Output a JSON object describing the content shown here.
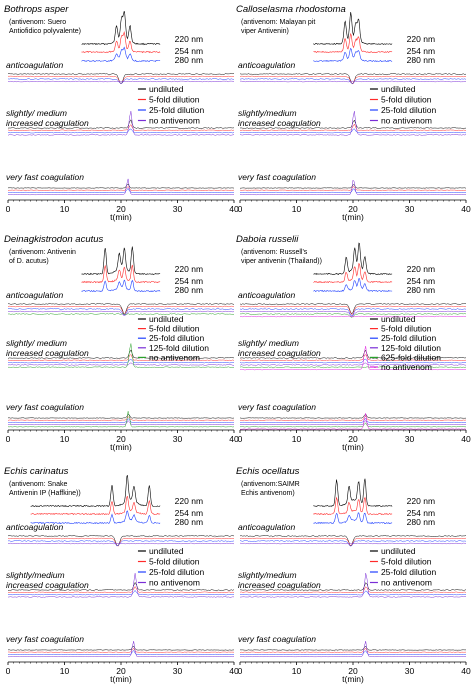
{
  "chart_data": [
    {
      "type": "line",
      "species": "Bothrops asper",
      "antivenom_note": [
        "(antivenom: Suero",
        "Antiofidico polyvalente)"
      ],
      "uv_labels": [
        "220 nm",
        "254 nm",
        "280 nm"
      ],
      "sections": [
        "anticoagulation",
        "slightly/ medium increased coagulation",
        "very fast coagulation"
      ],
      "legend": [
        "undiluted",
        "5-fold dilution",
        "25-fold dilution",
        "no antivenom"
      ],
      "xlabel": "t(min)",
      "xlim": [
        0,
        40
      ],
      "xticks": [
        0,
        10,
        20,
        30,
        40
      ],
      "peak_times": [
        19.2,
        20.1,
        20.6,
        21.6
      ],
      "anticoag_dip": 20.0,
      "coag_peak": 21.7,
      "fast_peak": 21.2
    },
    {
      "type": "line",
      "species": "Calloselasma rhodostoma",
      "antivenom_note": [
        "(antivenom: Malayan pit",
        "viper Antivenin)"
      ],
      "uv_labels": [
        "220 nm",
        "254 nm",
        "280 nm"
      ],
      "sections": [
        "anticoagulation",
        "slightly/medium increased coagulation",
        "very fast coagulation"
      ],
      "legend": [
        "undiluted",
        "5-fold dilution",
        "25-fold dilution",
        "no antivenom"
      ],
      "xlabel": "t(min)",
      "xlim": [
        0,
        40
      ],
      "xticks": [
        0,
        10,
        20,
        30,
        40
      ],
      "peak_times": [
        18.6,
        19.6,
        20.5,
        21.0
      ],
      "anticoag_dip": 19.9,
      "coag_peak": 20.2,
      "fast_peak": 20.1
    },
    {
      "type": "line",
      "species": "Deinagkistrodon acutus",
      "antivenom_note": [
        "(antivenom: Antivenin",
        "of D. acutus)"
      ],
      "uv_labels": [
        "220 nm",
        "254 nm",
        "280 nm"
      ],
      "sections": [
        "anticoagulation",
        "slightly/ medium increased coagulation",
        "very fast coagulation"
      ],
      "legend": [
        "undiluted",
        "5-fold dilution",
        "25-fold dilution",
        "125-fold dilution",
        "no antivenom"
      ],
      "xlabel": "t(min)",
      "xlim": [
        0,
        40
      ],
      "xticks": [
        0,
        10,
        20,
        30,
        40
      ],
      "peak_times": [
        17.2,
        19.7,
        20.6,
        22.0
      ],
      "anticoag_dip": 20.6,
      "coag_peak": 21.7,
      "fast_peak": 21.3
    },
    {
      "type": "line",
      "species": "Daboia russelii",
      "antivenom_note": [
        "(antivenom: Russell's",
        "viper antivenin (Thailand))"
      ],
      "uv_labels": [
        "220 nm",
        "254 nm",
        "280 nm"
      ],
      "sections": [
        "anticoagulation",
        "slightly/ medium increased coagulation",
        "very fast coagulation"
      ],
      "legend": [
        "undiluted",
        "5-fold dilution",
        "25-fold dilution",
        "125-fold dilution",
        "625-fold dilution",
        "no antivenom"
      ],
      "xlabel": "t(min)",
      "xlim": [
        0,
        40
      ],
      "xticks": [
        0,
        10,
        20,
        30,
        40
      ],
      "peak_times": [
        18.8,
        20.3,
        21.1,
        22.1
      ],
      "anticoag_dip": 19.8,
      "coag_peak": 22.2,
      "fast_peak": 22.2
    },
    {
      "type": "line",
      "species": "Echis carinatus",
      "antivenom_note": [
        "(antivenom: Snake",
        "Antivenin IP (Haffkine))"
      ],
      "uv_labels": [
        "220 nm",
        "254 nm",
        "280 nm"
      ],
      "sections": [
        "anticoagulation",
        "slightly/medium increased coagulation",
        "very fast coagulation"
      ],
      "legend": [
        "undiluted",
        "5-fold dilution",
        "25-fold dilution",
        "no antivenom"
      ],
      "xlabel": "t(min)",
      "xlim": [
        0,
        40
      ],
      "xticks": [
        0,
        10,
        20,
        30,
        40
      ],
      "peak_times": [
        18.4,
        21.1,
        22.3,
        25.0
      ],
      "anticoag_dip": 19.4,
      "coag_peak": 22.5,
      "fast_peak": 22.2
    },
    {
      "type": "line",
      "species": "Echis ocellatus",
      "antivenom_note": [
        "(antivenom:SAIMR",
        "Echis antivenom)"
      ],
      "uv_labels": [
        "220 nm",
        "254 nm",
        "280 nm"
      ],
      "sections": [
        "anticoagulation",
        "slightly/medium increased coagulation",
        "very fast coagulation"
      ],
      "legend": [
        "undiluted",
        "5-fold dilution",
        "25-fold dilution",
        "no antivenom"
      ],
      "xlabel": "t(min)",
      "xlim": [
        0,
        40
      ],
      "xticks": [
        0,
        10,
        20,
        30,
        40
      ],
      "peak_times": [
        17.1,
        19.3,
        21.0,
        22.1
      ],
      "anticoag_dip": 19.6,
      "coag_peak": 22.3,
      "fast_peak": 22.2
    }
  ],
  "colors": {
    "black": "#000000",
    "red": "#ff2a2a",
    "blue": "#2040ff",
    "purple": "#7a2dd6",
    "green": "#2aa12a",
    "magenta": "#e020e0"
  }
}
